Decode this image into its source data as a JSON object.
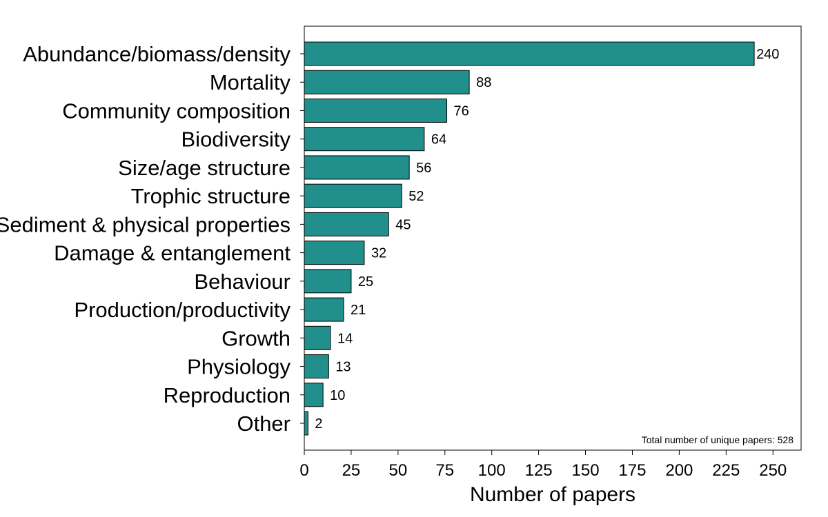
{
  "chart_data": {
    "type": "bar",
    "orientation": "horizontal",
    "categories": [
      "Abundance/biomass/density",
      "Mortality",
      "Community composition",
      "Biodiversity",
      "Size/age structure",
      "Trophic structure",
      "Sediment & physical properties",
      "Damage & entanglement",
      "Behaviour",
      "Production/productivity",
      "Growth",
      "Physiology",
      "Reproduction",
      "Other"
    ],
    "values": [
      240,
      88,
      76,
      64,
      56,
      52,
      45,
      32,
      25,
      21,
      14,
      13,
      10,
      2
    ],
    "title": "",
    "xlabel": "Number of papers",
    "ylabel": "",
    "xlim": [
      0,
      265
    ],
    "xticks": [
      0,
      25,
      50,
      75,
      100,
      125,
      150,
      175,
      200,
      225,
      250
    ],
    "annotation": "Total number of unique papers: 528",
    "bar_color": "#21908C",
    "bar_edge_color": "#000000",
    "grid": false,
    "legend": "none"
  }
}
